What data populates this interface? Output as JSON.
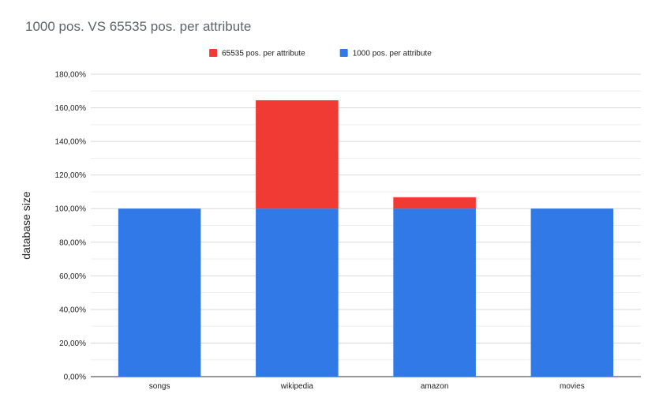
{
  "chart_data": {
    "type": "bar",
    "stacked": true,
    "title": "1000 pos. VS 65535 pos. per attribute",
    "xlabel": "",
    "ylabel": "database size",
    "categories": [
      "songs",
      "wikipedia",
      "amazon",
      "movies"
    ],
    "series": [
      {
        "name": "1000 pos. per attribute",
        "color": "#3279e8",
        "values": [
          100,
          100,
          100,
          100
        ]
      },
      {
        "name": "65535 pos. per attribute",
        "color": "#f03b35",
        "values": [
          0,
          64.5,
          6.8,
          0
        ]
      }
    ],
    "legend_order": [
      1,
      0
    ],
    "legend_position": "top",
    "ylim": [
      0,
      180
    ],
    "yticks": [
      "0,00%",
      "20,00%",
      "40,00%",
      "60,00%",
      "80,00%",
      "100,00%",
      "120,00%",
      "140,00%",
      "160,00%",
      "180,00%"
    ],
    "grid": true
  }
}
